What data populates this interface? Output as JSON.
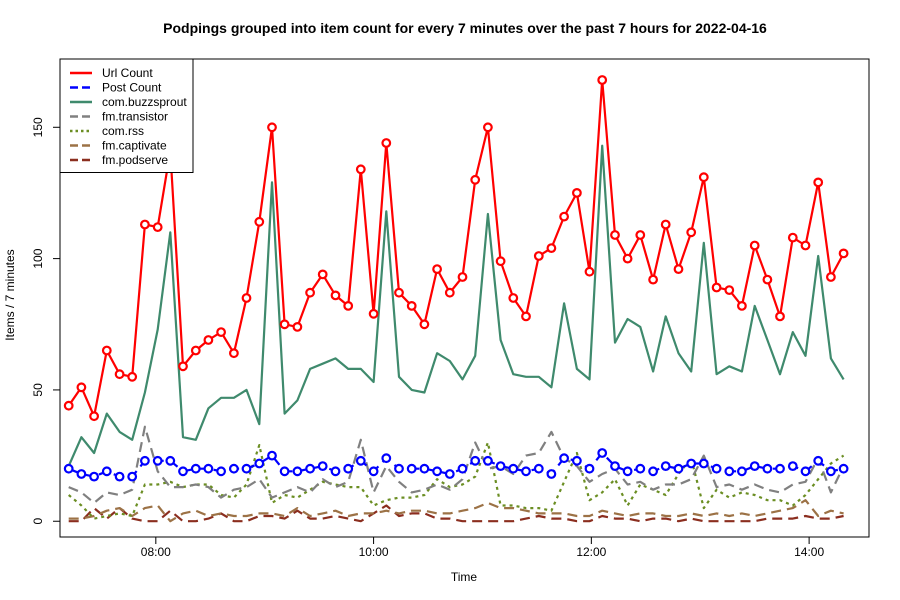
{
  "chart_data": {
    "type": "line",
    "title": "Podpings grouped into item count for every 7 minutes  over the past 7 hours for 2022-04-16",
    "xlabel": "Time",
    "ylabel": "Items / 7 minutes",
    "x_unit": "hours",
    "xlim": [
      7.12,
      14.55
    ],
    "ylim": [
      -6,
      176
    ],
    "x_ticks": [
      {
        "value": 8,
        "label": "08:00"
      },
      {
        "value": 10,
        "label": "10:00"
      },
      {
        "value": 12,
        "label": "12:00"
      },
      {
        "value": 14,
        "label": "14:00"
      }
    ],
    "y_ticks": [
      0,
      50,
      100,
      150
    ],
    "grid": false,
    "legend_position": "top-left",
    "x": [
      7.2,
      7.317,
      7.433,
      7.55,
      7.667,
      7.783,
      7.9,
      8.017,
      8.133,
      8.25,
      8.367,
      8.483,
      8.6,
      8.717,
      8.833,
      8.95,
      9.067,
      9.183,
      9.3,
      9.417,
      9.533,
      9.65,
      9.767,
      9.883,
      10.0,
      10.117,
      10.233,
      10.35,
      10.467,
      10.583,
      10.7,
      10.817,
      10.933,
      11.05,
      11.167,
      11.283,
      11.4,
      11.517,
      11.633,
      11.75,
      11.867,
      11.983,
      12.1,
      12.217,
      12.333,
      12.45,
      12.567,
      12.683,
      12.8,
      12.917,
      13.033,
      13.15,
      13.267,
      13.383,
      13.5,
      13.617,
      13.733,
      13.85,
      13.967,
      14.083,
      14.2,
      14.317
    ],
    "series": [
      {
        "name": "Url Count",
        "color": "#ff0000",
        "style": "solid",
        "markers": true,
        "values": [
          44,
          51,
          40,
          65,
          56,
          55,
          113,
          112,
          141,
          59,
          65,
          69,
          72,
          64,
          85,
          114,
          150,
          75,
          74,
          87,
          94,
          86,
          82,
          134,
          79,
          144,
          87,
          82,
          75,
          96,
          87,
          93,
          130,
          150,
          99,
          85,
          78,
          101,
          104,
          116,
          125,
          95,
          168,
          109,
          100,
          109,
          92,
          113,
          96,
          110,
          131,
          89,
          88,
          82,
          105,
          92,
          78,
          108,
          105,
          129,
          93,
          102
        ]
      },
      {
        "name": "Post Count",
        "color": "#0000ff",
        "style": "dashed",
        "markers": true,
        "values": [
          20,
          18,
          17,
          19,
          17,
          17,
          23,
          23,
          23,
          19,
          20,
          20,
          19,
          20,
          20,
          22,
          25,
          19,
          19,
          20,
          21,
          19,
          20,
          23,
          19,
          24,
          20,
          20,
          20,
          19,
          18,
          20,
          23,
          23,
          21,
          20,
          19,
          20,
          18,
          24,
          23,
          20,
          26,
          21,
          19,
          20,
          19,
          21,
          20,
          22,
          22,
          20,
          19,
          19,
          21,
          20,
          20,
          21,
          19,
          23,
          19,
          20
        ]
      },
      {
        "name": "com.buzzsprout",
        "color": "#3f8a6d",
        "style": "solid",
        "markers": false,
        "values": [
          21,
          32,
          26,
          41,
          34,
          31,
          49,
          73,
          110,
          32,
          31,
          43,
          47,
          47,
          50,
          37,
          129,
          41,
          46,
          58,
          60,
          62,
          58,
          58,
          53,
          118,
          55,
          50,
          49,
          64,
          61,
          54,
          63,
          117,
          69,
          56,
          55,
          55,
          51,
          83,
          58,
          54,
          143,
          68,
          77,
          74,
          57,
          78,
          64,
          57,
          106,
          56,
          59,
          57,
          82,
          69,
          56,
          72,
          63,
          101,
          62,
          54
        ]
      },
      {
        "name": "fm.transistor",
        "color": "#808080",
        "style": "dashed",
        "markers": false,
        "values": [
          13,
          11,
          7,
          11,
          10,
          12,
          36,
          19,
          13,
          13,
          14,
          13,
          9,
          12,
          13,
          16,
          9,
          11,
          13,
          11,
          16,
          13,
          15,
          31,
          11,
          21,
          15,
          11,
          12,
          14,
          12,
          16,
          30,
          20,
          21,
          18,
          25,
          26,
          34,
          24,
          21,
          15,
          18,
          20,
          14,
          15,
          12,
          14,
          14,
          16,
          25,
          13,
          14,
          12,
          14,
          12,
          11,
          14,
          15,
          24,
          11,
          21
        ]
      },
      {
        "name": "com.rss",
        "color": "#6b8e23",
        "style": "dotted",
        "markers": false,
        "values": [
          10,
          6,
          1,
          2,
          3,
          2,
          14,
          14,
          15,
          13,
          14,
          14,
          10,
          9,
          14,
          29,
          7,
          10,
          9,
          12,
          15,
          14,
          13,
          13,
          6,
          8,
          9,
          9,
          10,
          16,
          13,
          14,
          17,
          30,
          6,
          6,
          5,
          5,
          4,
          15,
          26,
          8,
          11,
          16,
          6,
          14,
          12,
          10,
          18,
          24,
          5,
          12,
          9,
          11,
          10,
          8,
          8,
          6,
          10,
          16,
          22,
          25
        ]
      },
      {
        "name": "fm.captivate",
        "color": "#9c7246",
        "style": "dashed",
        "markers": false,
        "values": [
          1,
          1,
          2,
          4,
          5,
          2,
          5,
          6,
          0,
          3,
          4,
          2,
          3,
          2,
          2,
          3,
          3,
          2,
          5,
          2,
          3,
          4,
          2,
          3,
          3,
          4,
          3,
          4,
          4,
          3,
          3,
          4,
          5,
          7,
          5,
          5,
          4,
          3,
          3,
          3,
          2,
          2,
          4,
          3,
          2,
          3,
          3,
          2,
          2,
          3,
          2,
          3,
          2,
          3,
          2,
          3,
          4,
          5,
          8,
          2,
          4,
          3
        ]
      },
      {
        "name": "fm.podserve",
        "color": "#8b2e1f",
        "style": "dashed",
        "markers": false,
        "values": [
          0,
          0,
          5,
          1,
          5,
          1,
          0,
          0,
          4,
          0,
          0,
          1,
          3,
          0,
          0,
          2,
          2,
          1,
          4,
          1,
          1,
          2,
          1,
          0,
          3,
          6,
          2,
          3,
          3,
          1,
          1,
          0,
          0,
          0,
          0,
          0,
          1,
          2,
          1,
          1,
          0,
          0,
          2,
          1,
          1,
          0,
          1,
          1,
          0,
          1,
          0,
          0,
          0,
          0,
          0,
          1,
          1,
          1,
          2,
          1,
          1,
          2
        ]
      }
    ]
  }
}
